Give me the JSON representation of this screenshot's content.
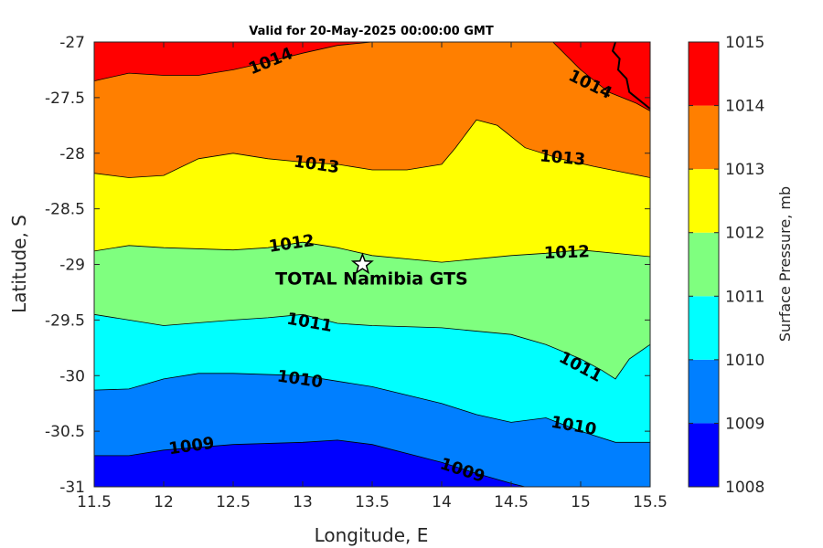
{
  "chart_data": {
    "type": "contour",
    "title": "Valid for 20-May-2025 00:00:00 GMT",
    "xlabel": "Longitude, E",
    "ylabel": "Latitude, S",
    "xlim": [
      11.5,
      15.5
    ],
    "ylim": [
      -31,
      -27
    ],
    "xticks": [
      "11.5",
      "12",
      "12.5",
      "13",
      "13.5",
      "14",
      "14.5",
      "15",
      "15.5"
    ],
    "yticks": [
      "-27",
      "-27.5",
      "-28",
      "-28.5",
      "-29",
      "-29.5",
      "-30",
      "-30.5",
      "-31"
    ],
    "colorbar": {
      "label": "Surface Pressure, mb",
      "ticks": [
        "1015",
        "1014",
        "1013",
        "1012",
        "1011",
        "1010",
        "1009",
        "1008"
      ],
      "levels": [
        1008,
        1009,
        1010,
        1011,
        1012,
        1013,
        1014,
        1015
      ],
      "colors": [
        "#0000ff",
        "#007fff",
        "#00ffff",
        "#7fff7f",
        "#ffff00",
        "#ff7f00",
        "#ff0000",
        "#7f0000"
      ]
    },
    "contours": [
      {
        "level": 1014,
        "label": "1014",
        "points": [
          [
            11.5,
            -27.35
          ],
          [
            11.75,
            -27.28
          ],
          [
            12,
            -27.3
          ],
          [
            12.25,
            -27.3
          ],
          [
            12.5,
            -27.25
          ],
          [
            12.75,
            -27.18
          ],
          [
            13,
            -27.1
          ],
          [
            13.25,
            -27.03
          ],
          [
            13.5,
            -27.0
          ]
        ]
      },
      {
        "level": 1014,
        "label": "1014",
        "points": [
          [
            14.8,
            -27.0
          ],
          [
            15.0,
            -27.25
          ],
          [
            15.2,
            -27.45
          ],
          [
            15.4,
            -27.55
          ],
          [
            15.5,
            -27.62
          ]
        ]
      },
      {
        "level": 1013,
        "label": "1013",
        "points": [
          [
            11.5,
            -28.18
          ],
          [
            11.75,
            -28.22
          ],
          [
            12,
            -28.2
          ],
          [
            12.25,
            -28.05
          ],
          [
            12.5,
            -28.0
          ],
          [
            12.75,
            -28.05
          ],
          [
            13,
            -28.08
          ],
          [
            13.25,
            -28.1
          ],
          [
            13.5,
            -28.15
          ],
          [
            13.75,
            -28.15
          ],
          [
            14,
            -28.1
          ],
          [
            14.1,
            -27.95
          ],
          [
            14.25,
            -27.7
          ],
          [
            14.4,
            -27.75
          ],
          [
            14.6,
            -27.95
          ],
          [
            14.85,
            -28.05
          ],
          [
            15.1,
            -28.12
          ],
          [
            15.5,
            -28.22
          ]
        ]
      },
      {
        "level": 1012,
        "label": "1012",
        "points": [
          [
            11.5,
            -28.88
          ],
          [
            11.75,
            -28.83
          ],
          [
            12,
            -28.85
          ],
          [
            12.5,
            -28.87
          ],
          [
            12.75,
            -28.85
          ],
          [
            13,
            -28.8
          ],
          [
            13.25,
            -28.85
          ],
          [
            13.5,
            -28.92
          ],
          [
            14,
            -28.98
          ],
          [
            14.5,
            -28.92
          ],
          [
            14.75,
            -28.9
          ],
          [
            15,
            -28.87
          ],
          [
            15.5,
            -28.93
          ]
        ]
      },
      {
        "level": 1011,
        "label": "1011",
        "points": [
          [
            11.5,
            -29.45
          ],
          [
            11.75,
            -29.5
          ],
          [
            12,
            -29.55
          ],
          [
            12.5,
            -29.5
          ],
          [
            12.75,
            -29.48
          ],
          [
            13,
            -29.45
          ],
          [
            13.25,
            -29.53
          ],
          [
            13.5,
            -29.55
          ],
          [
            14,
            -29.57
          ],
          [
            14.5,
            -29.63
          ],
          [
            14.75,
            -29.72
          ],
          [
            15,
            -29.85
          ],
          [
            15.15,
            -29.95
          ],
          [
            15.25,
            -30.03
          ],
          [
            15.35,
            -29.85
          ],
          [
            15.5,
            -29.72
          ]
        ]
      },
      {
        "level": 1010,
        "label": "1010",
        "points": [
          [
            11.5,
            -30.13
          ],
          [
            11.75,
            -30.12
          ],
          [
            12,
            -30.03
          ],
          [
            12.25,
            -29.98
          ],
          [
            12.5,
            -29.98
          ],
          [
            13,
            -30.0
          ],
          [
            13.5,
            -30.1
          ],
          [
            14,
            -30.25
          ],
          [
            14.25,
            -30.35
          ],
          [
            14.5,
            -30.42
          ],
          [
            14.75,
            -30.38
          ],
          [
            15,
            -30.5
          ],
          [
            15.25,
            -30.6
          ],
          [
            15.5,
            -30.6
          ]
        ]
      },
      {
        "level": 1009,
        "label": "1009",
        "points": [
          [
            11.5,
            -30.72
          ],
          [
            11.75,
            -30.72
          ],
          [
            12,
            -30.67
          ],
          [
            12.5,
            -30.62
          ],
          [
            13,
            -30.6
          ],
          [
            13.25,
            -30.58
          ],
          [
            13.5,
            -30.62
          ],
          [
            14,
            -30.78
          ],
          [
            14.25,
            -30.88
          ],
          [
            14.5,
            -30.97
          ],
          [
            14.6,
            -31.0
          ]
        ]
      }
    ],
    "contour_labels": [
      {
        "text": "1014",
        "x": 12.77,
        "y": -27.17,
        "rot": -22
      },
      {
        "text": "1014",
        "x": 15.07,
        "y": -27.38,
        "rot": 26
      },
      {
        "text": "1013",
        "x": 13.1,
        "y": -28.1,
        "rot": 8
      },
      {
        "text": "1013",
        "x": 14.87,
        "y": -28.04,
        "rot": 5
      },
      {
        "text": "1012",
        "x": 12.92,
        "y": -28.81,
        "rot": -8
      },
      {
        "text": "1012",
        "x": 14.9,
        "y": -28.89,
        "rot": -2
      },
      {
        "text": "1011",
        "x": 13.05,
        "y": -29.52,
        "rot": 10
      },
      {
        "text": "1011",
        "x": 15.0,
        "y": -29.92,
        "rot": 28
      },
      {
        "text": "1010",
        "x": 12.98,
        "y": -30.03,
        "rot": 8
      },
      {
        "text": "1010",
        "x": 14.95,
        "y": -30.45,
        "rot": 10
      },
      {
        "text": "1009",
        "x": 12.2,
        "y": -30.63,
        "rot": -8
      },
      {
        "text": "1009",
        "x": 14.15,
        "y": -30.85,
        "rot": 18
      }
    ],
    "site": {
      "name": "TOTAL Namibia GTS",
      "lon": 13.43,
      "lat": -29.0
    }
  }
}
